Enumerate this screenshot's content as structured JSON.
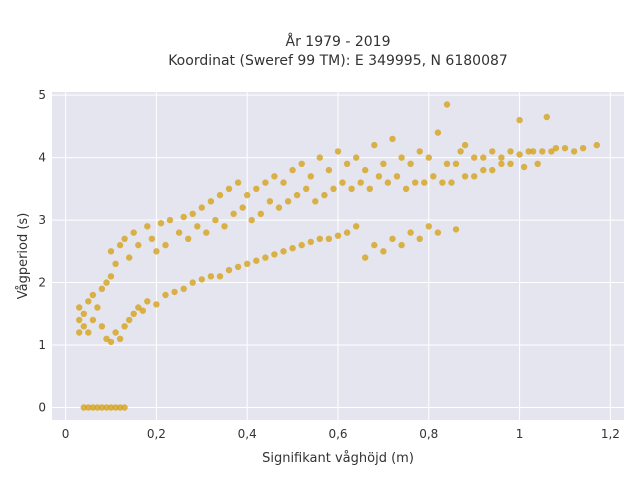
{
  "chart_data": {
    "type": "scatter",
    "title_lines": [
      "År 1979 - 2019",
      "Koordinat (Sweref 99 TM): E 349995, N 6180087"
    ],
    "xlabel": "Signifikant våghöjd (m)",
    "ylabel": "Vågperiod (s)",
    "xlim": [
      -0.03,
      1.23
    ],
    "ylim": [
      -0.2,
      5.05
    ],
    "xticks": [
      0,
      0.2,
      0.4,
      0.6,
      0.8,
      1,
      1.2
    ],
    "xtick_labels": [
      "0",
      "0,2",
      "0,4",
      "0,6",
      "0,8",
      "1",
      "1,2"
    ],
    "yticks": [
      0,
      1,
      2,
      3,
      4,
      5
    ],
    "ytick_labels": [
      "0",
      "1",
      "2",
      "3",
      "4",
      "5"
    ],
    "grid": true,
    "background": "#e5e5ef",
    "marker_color": "#d4a31a",
    "series": [
      {
        "points": [
          [
            0.04,
            0
          ],
          [
            0.05,
            0
          ],
          [
            0.06,
            0
          ],
          [
            0.07,
            0
          ],
          [
            0.08,
            0
          ],
          [
            0.09,
            0
          ],
          [
            0.1,
            0
          ],
          [
            0.11,
            0
          ],
          [
            0.12,
            0
          ],
          [
            0.13,
            0
          ],
          [
            0.03,
            1.2
          ],
          [
            0.03,
            1.4
          ],
          [
            0.03,
            1.6
          ],
          [
            0.04,
            1.3
          ],
          [
            0.04,
            1.5
          ],
          [
            0.05,
            1.2
          ],
          [
            0.05,
            1.7
          ],
          [
            0.06,
            1.4
          ],
          [
            0.06,
            1.8
          ],
          [
            0.07,
            1.6
          ],
          [
            0.08,
            1.3
          ],
          [
            0.08,
            1.9
          ],
          [
            0.09,
            1.1
          ],
          [
            0.09,
            2.0
          ],
          [
            0.1,
            1.05
          ],
          [
            0.1,
            2.1
          ],
          [
            0.1,
            2.5
          ],
          [
            0.11,
            1.2
          ],
          [
            0.11,
            2.3
          ],
          [
            0.12,
            1.1
          ],
          [
            0.12,
            2.6
          ],
          [
            0.13,
            1.3
          ],
          [
            0.13,
            2.7
          ],
          [
            0.14,
            1.4
          ],
          [
            0.14,
            2.4
          ],
          [
            0.15,
            1.5
          ],
          [
            0.15,
            2.8
          ],
          [
            0.16,
            1.6
          ],
          [
            0.16,
            2.6
          ],
          [
            0.17,
            1.55
          ],
          [
            0.18,
            2.9
          ],
          [
            0.18,
            1.7
          ],
          [
            0.19,
            2.7
          ],
          [
            0.2,
            1.65
          ],
          [
            0.2,
            2.5
          ],
          [
            0.21,
            2.95
          ],
          [
            0.22,
            1.8
          ],
          [
            0.22,
            2.6
          ],
          [
            0.23,
            3.0
          ],
          [
            0.24,
            1.85
          ],
          [
            0.25,
            2.8
          ],
          [
            0.26,
            3.05
          ],
          [
            0.26,
            1.9
          ],
          [
            0.27,
            2.7
          ],
          [
            0.28,
            3.1
          ],
          [
            0.28,
            2.0
          ],
          [
            0.29,
            2.9
          ],
          [
            0.3,
            3.2
          ],
          [
            0.3,
            2.05
          ],
          [
            0.31,
            2.8
          ],
          [
            0.32,
            3.3
          ],
          [
            0.32,
            2.1
          ],
          [
            0.33,
            3.0
          ],
          [
            0.34,
            3.4
          ],
          [
            0.34,
            2.1
          ],
          [
            0.35,
            2.9
          ],
          [
            0.36,
            3.5
          ],
          [
            0.36,
            2.2
          ],
          [
            0.37,
            3.1
          ],
          [
            0.38,
            3.6
          ],
          [
            0.38,
            2.25
          ],
          [
            0.39,
            3.2
          ],
          [
            0.4,
            3.4
          ],
          [
            0.4,
            2.3
          ],
          [
            0.41,
            3.0
          ],
          [
            0.42,
            3.5
          ],
          [
            0.42,
            2.35
          ],
          [
            0.43,
            3.1
          ],
          [
            0.44,
            3.6
          ],
          [
            0.44,
            2.4
          ],
          [
            0.45,
            3.3
          ],
          [
            0.46,
            3.7
          ],
          [
            0.46,
            2.45
          ],
          [
            0.47,
            3.2
          ],
          [
            0.48,
            3.6
          ],
          [
            0.48,
            2.5
          ],
          [
            0.49,
            3.3
          ],
          [
            0.5,
            3.8
          ],
          [
            0.5,
            2.55
          ],
          [
            0.51,
            3.4
          ],
          [
            0.52,
            3.9
          ],
          [
            0.52,
            2.6
          ],
          [
            0.53,
            3.5
          ],
          [
            0.54,
            3.7
          ],
          [
            0.54,
            2.65
          ],
          [
            0.55,
            3.3
          ],
          [
            0.56,
            4.0
          ],
          [
            0.56,
            2.7
          ],
          [
            0.57,
            3.4
          ],
          [
            0.58,
            3.8
          ],
          [
            0.58,
            2.7
          ],
          [
            0.59,
            3.5
          ],
          [
            0.6,
            4.1
          ],
          [
            0.6,
            2.75
          ],
          [
            0.61,
            3.6
          ],
          [
            0.62,
            3.9
          ],
          [
            0.62,
            2.8
          ],
          [
            0.63,
            3.5
          ],
          [
            0.64,
            4.0
          ],
          [
            0.64,
            2.9
          ],
          [
            0.65,
            3.6
          ],
          [
            0.66,
            3.8
          ],
          [
            0.66,
            2.4
          ],
          [
            0.67,
            3.5
          ],
          [
            0.68,
            4.2
          ],
          [
            0.68,
            2.6
          ],
          [
            0.69,
            3.7
          ],
          [
            0.7,
            3.9
          ],
          [
            0.7,
            2.5
          ],
          [
            0.71,
            3.6
          ],
          [
            0.72,
            4.3
          ],
          [
            0.72,
            2.7
          ],
          [
            0.73,
            3.7
          ],
          [
            0.74,
            4.0
          ],
          [
            0.74,
            2.6
          ],
          [
            0.75,
            3.5
          ],
          [
            0.76,
            3.9
          ],
          [
            0.76,
            2.8
          ],
          [
            0.77,
            3.6
          ],
          [
            0.78,
            4.1
          ],
          [
            0.78,
            2.7
          ],
          [
            0.79,
            3.6
          ],
          [
            0.8,
            4.0
          ],
          [
            0.8,
            2.9
          ],
          [
            0.81,
            3.7
          ],
          [
            0.82,
            4.4
          ],
          [
            0.82,
            2.8
          ],
          [
            0.83,
            3.6
          ],
          [
            0.84,
            4.85
          ],
          [
            0.84,
            3.9
          ],
          [
            0.85,
            3.6
          ],
          [
            0.86,
            2.85
          ],
          [
            0.86,
            3.9
          ],
          [
            0.87,
            4.1
          ],
          [
            0.88,
            3.7
          ],
          [
            0.88,
            4.2
          ],
          [
            0.9,
            3.7
          ],
          [
            0.9,
            4.0
          ],
          [
            0.92,
            3.8
          ],
          [
            0.92,
            4.0
          ],
          [
            0.94,
            3.8
          ],
          [
            0.94,
            4.1
          ],
          [
            0.96,
            3.9
          ],
          [
            0.96,
            4.0
          ],
          [
            0.98,
            3.9
          ],
          [
            0.98,
            4.1
          ],
          [
            1.0,
            4.05
          ],
          [
            1.0,
            4.6
          ],
          [
            1.01,
            3.85
          ],
          [
            1.02,
            4.1
          ],
          [
            1.03,
            4.1
          ],
          [
            1.04,
            3.9
          ],
          [
            1.05,
            4.1
          ],
          [
            1.06,
            4.65
          ],
          [
            1.07,
            4.1
          ],
          [
            1.08,
            4.15
          ],
          [
            1.1,
            4.15
          ],
          [
            1.12,
            4.1
          ],
          [
            1.14,
            4.15
          ],
          [
            1.17,
            4.2
          ]
        ]
      }
    ]
  }
}
